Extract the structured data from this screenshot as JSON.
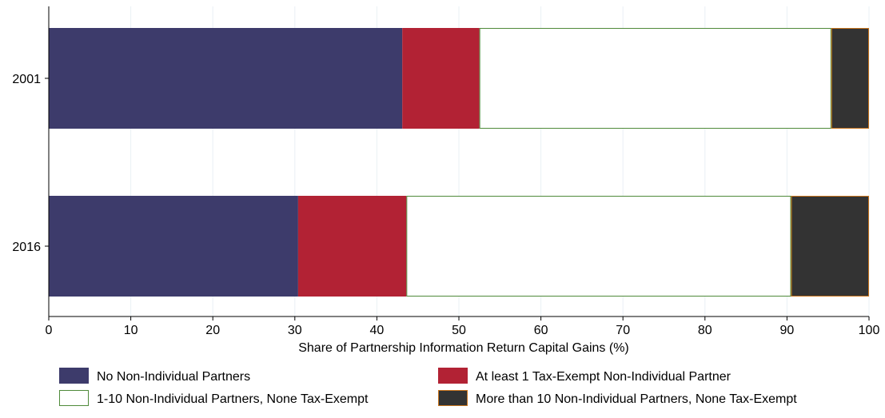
{
  "chart_data": {
    "type": "bar",
    "orientation": "horizontal",
    "stacked": true,
    "categories": [
      "2001",
      "2016"
    ],
    "series": [
      {
        "name": "No Non-Individual Partners",
        "values": [
          43.1,
          30.4
        ],
        "color": "#3d3b6b",
        "stroke": "#3d3b6b"
      },
      {
        "name": "At least 1 Tax-Exempt Non-Individual Partner",
        "values": [
          9.4,
          13.2
        ],
        "color": "#b22234",
        "stroke": "#b22234"
      },
      {
        "name": "1-10 Non-Individual Partners, None Tax-Exempt",
        "values": [
          42.9,
          46.9
        ],
        "color": "#ffffff",
        "stroke": "#4f8a3a"
      },
      {
        "name": "More than 10 Non-Individual Partners, None Tax-Exempt",
        "values": [
          4.6,
          9.5
        ],
        "color": "#333333",
        "stroke": "#c8741d"
      }
    ],
    "title": "",
    "xlabel": "Share of Partnership Information Return Capital Gains (%)",
    "ylabel": "",
    "xlim": [
      0,
      100
    ],
    "xticks": [
      "0",
      "10",
      "20",
      "30",
      "40",
      "50",
      "60",
      "70",
      "80",
      "90",
      "100"
    ],
    "grid": true,
    "legend_position": "bottom"
  }
}
